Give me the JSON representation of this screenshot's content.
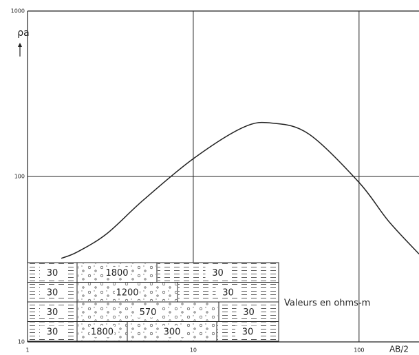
{
  "chart_data": {
    "type": "line",
    "x": [
      1.6,
      2,
      3,
      5,
      10,
      20,
      30,
      50,
      100,
      150,
      230
    ],
    "values": [
      32,
      35,
      45,
      72,
      128,
      198,
      210,
      180,
      92,
      54,
      34
    ],
    "xlim": [
      1,
      230
    ],
    "ylim": [
      10,
      1000
    ],
    "xticks": [
      1,
      10,
      100
    ],
    "yticks": [
      10,
      100,
      1000
    ],
    "xlog": true,
    "ylog": true,
    "grid": true,
    "color": "#222",
    "x_label": "AB/2",
    "y_label": "ρa"
  },
  "section": {
    "rows": [
      [
        "30",
        "1800",
        "30"
      ],
      [
        "30",
        "1200",
        "30"
      ],
      [
        "30",
        "570",
        "30"
      ],
      [
        "30",
        "1800",
        "300",
        "30"
      ]
    ],
    "note": "Valeurs en ohms-m"
  }
}
